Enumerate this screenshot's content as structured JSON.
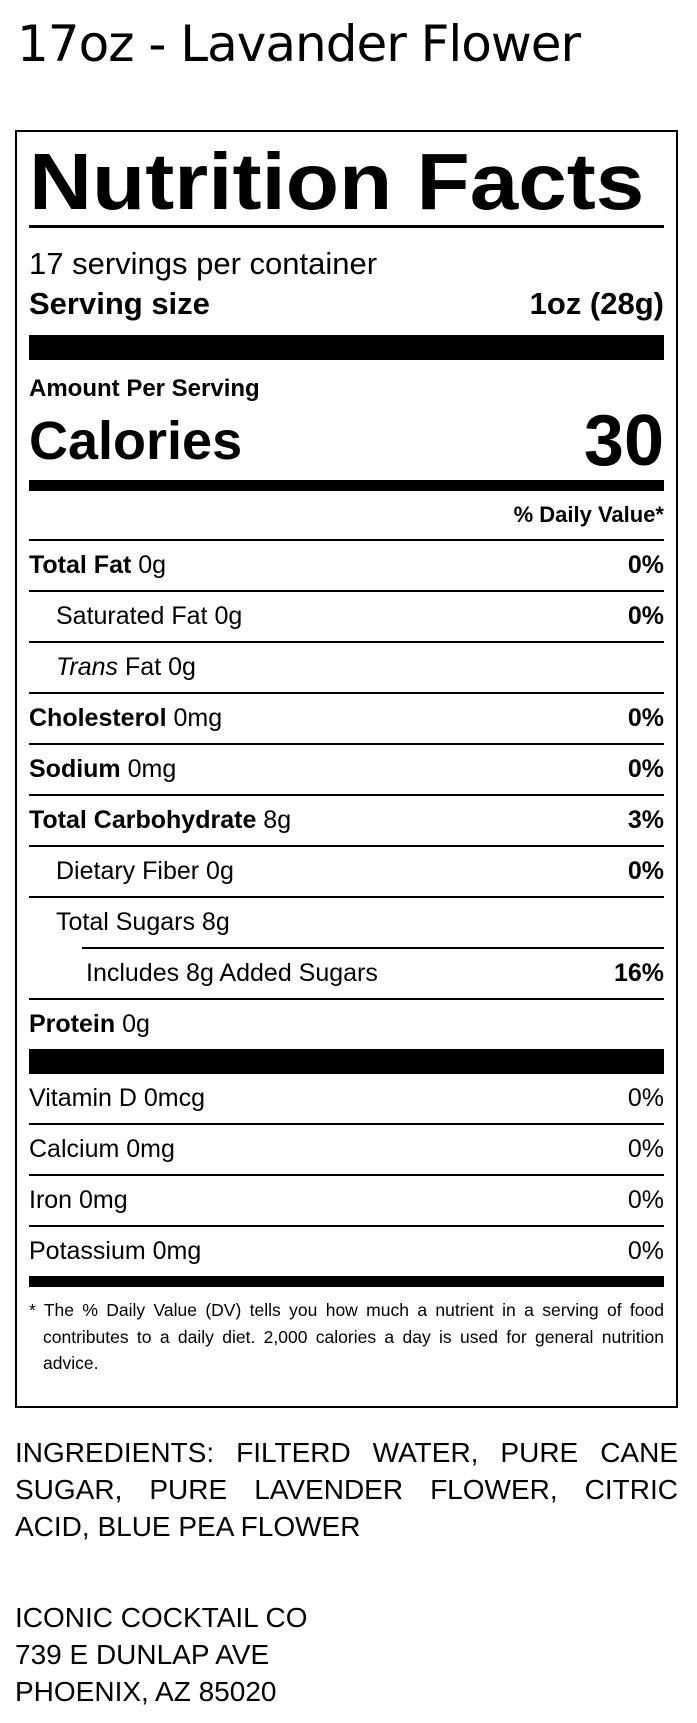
{
  "product_title": "17oz - Lavander Flower",
  "label": {
    "heading": "Nutrition Facts",
    "servings_per_container": "17 servings per container",
    "serving_size_label": "Serving size",
    "serving_size_value": "1oz (28g)",
    "amount_per_serving": "Amount Per Serving",
    "calories_label": "Calories",
    "calories_value": "30",
    "daily_value_header": "% Daily Value*",
    "nutrients": [
      {
        "name": "Total Fat",
        "amount": "0g",
        "dv": "0%"
      },
      {
        "name": "Saturated Fat",
        "amount": "0g",
        "dv": "0%"
      },
      {
        "name": "Trans",
        "name_suffix": "Fat",
        "amount": "0g",
        "dv": ""
      },
      {
        "name": "Cholesterol",
        "amount": "0mg",
        "dv": "0%"
      },
      {
        "name": "Sodium",
        "amount": "0mg",
        "dv": "0%"
      },
      {
        "name": "Total Carbohydrate",
        "amount": "8g",
        "dv": "3%"
      },
      {
        "name": "Dietary Fiber",
        "amount": "0g",
        "dv": "0%"
      },
      {
        "name": "Total Sugars",
        "amount": "8g",
        "dv": ""
      },
      {
        "name": "Includes 8g Added Sugars",
        "amount": "",
        "dv": "16%"
      },
      {
        "name": "Protein",
        "amount": "0g",
        "dv": ""
      }
    ],
    "vitamins": [
      {
        "name": "Vitamin D 0mcg",
        "dv": "0%"
      },
      {
        "name": "Calcium 0mg",
        "dv": "0%"
      },
      {
        "name": "Iron 0mg",
        "dv": "0%"
      },
      {
        "name": "Potassium 0mg",
        "dv": "0%"
      }
    ],
    "footnote": "* The % Daily Value (DV) tells you how much a nutrient in a serving of food contributes to a daily diet. 2,000 calories a day is used for general nutrition advice."
  },
  "ingredients": "INGREDIENTS: FILTERD WATER, PURE CANE SUGAR, PURE LAVENDER FLOWER, CITRIC ACID, BLUE PEA FLOWER",
  "company": {
    "name": "ICONIC COCKTAIL CO",
    "address_line1": "739 E DUNLAP AVE",
    "address_line2": "PHOENIX, AZ 85020"
  }
}
